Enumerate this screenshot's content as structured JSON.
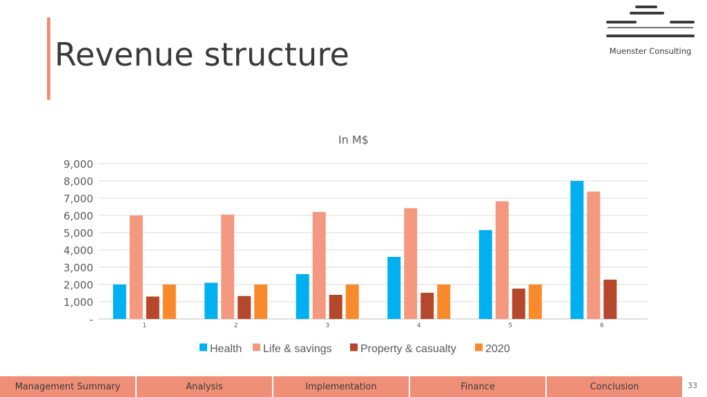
{
  "header": {
    "title": "Revenue structure",
    "logo_text": "Muenster Consulting"
  },
  "colors": {
    "accent": "#ef8f77",
    "logo": "#3a3a3a"
  },
  "chart_data": {
    "type": "bar",
    "title": "In M$",
    "categories": [
      "1",
      "2",
      "3",
      "4",
      "5",
      "6"
    ],
    "series": [
      {
        "name": "Health",
        "color": "#00b0f0",
        "values": [
          2000,
          2100,
          2600,
          3600,
          5150,
          8000
        ]
      },
      {
        "name": "Life & savings",
        "color": "#f4997f",
        "values": [
          6000,
          6050,
          6200,
          6420,
          6820,
          7380
        ]
      },
      {
        "name": "Property & casualty",
        "color": "#b5472a",
        "values": [
          1300,
          1330,
          1400,
          1520,
          1760,
          2280
        ]
      },
      {
        "name": "2020",
        "color": "#f98a2b",
        "values": [
          2000,
          2000,
          2000,
          2000,
          2000,
          null
        ]
      }
    ],
    "ylim": [
      0,
      9000
    ],
    "yticks": [
      0,
      1000,
      2000,
      3000,
      4000,
      5000,
      6000,
      7000,
      8000,
      9000
    ],
    "ytick_labels": [
      "-",
      "1,000",
      "2,000",
      "3,000",
      "4,000",
      "5,000",
      "6,000",
      "7,000",
      "8,000",
      "9,000"
    ],
    "grid": true,
    "legend_position": "bottom"
  },
  "nav": {
    "items": [
      "Management Summary",
      "Analysis",
      "Implementation",
      "Finance",
      "Conclusion"
    ]
  },
  "page_number": "33"
}
